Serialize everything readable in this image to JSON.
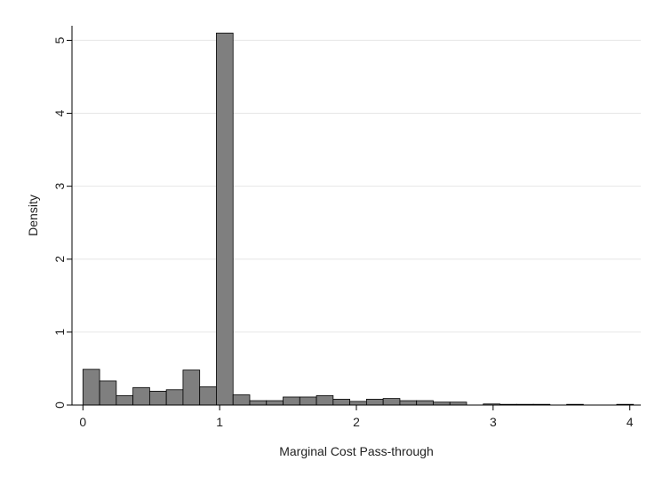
{
  "chart_data": {
    "type": "bar",
    "title": "",
    "xlabel": "Marginal Cost Pass-through",
    "ylabel": "Density",
    "xlim": [
      -0.08,
      4.08
    ],
    "ylim": [
      0,
      5.2
    ],
    "xticks": [
      0,
      1,
      2,
      3,
      4
    ],
    "yticks": [
      0,
      1,
      2,
      3,
      4,
      5
    ],
    "grid": true,
    "bin_width": 0.122,
    "bins": [
      {
        "x0": 0.0,
        "value": 0.49
      },
      {
        "x0": 0.122,
        "value": 0.33
      },
      {
        "x0": 0.244,
        "value": 0.13
      },
      {
        "x0": 0.366,
        "value": 0.24
      },
      {
        "x0": 0.488,
        "value": 0.19
      },
      {
        "x0": 0.61,
        "value": 0.21
      },
      {
        "x0": 0.732,
        "value": 0.48
      },
      {
        "x0": 0.854,
        "value": 0.25
      },
      {
        "x0": 0.976,
        "value": 5.1
      },
      {
        "x0": 1.098,
        "value": 0.14
      },
      {
        "x0": 1.22,
        "value": 0.06
      },
      {
        "x0": 1.342,
        "value": 0.06
      },
      {
        "x0": 1.464,
        "value": 0.11
      },
      {
        "x0": 1.586,
        "value": 0.11
      },
      {
        "x0": 1.708,
        "value": 0.13
      },
      {
        "x0": 1.83,
        "value": 0.08
      },
      {
        "x0": 1.952,
        "value": 0.05
      },
      {
        "x0": 2.074,
        "value": 0.08
      },
      {
        "x0": 2.196,
        "value": 0.09
      },
      {
        "x0": 2.318,
        "value": 0.06
      },
      {
        "x0": 2.44,
        "value": 0.06
      },
      {
        "x0": 2.562,
        "value": 0.04
      },
      {
        "x0": 2.684,
        "value": 0.04
      },
      {
        "x0": 2.928,
        "value": 0.015
      },
      {
        "x0": 3.05,
        "value": 0.008
      },
      {
        "x0": 3.172,
        "value": 0.008
      },
      {
        "x0": 3.294,
        "value": 0.008
      },
      {
        "x0": 3.538,
        "value": 0.008
      },
      {
        "x0": 3.904,
        "value": 0.008
      }
    ],
    "colors": {
      "bar_fill": "#7f7f7f",
      "bar_stroke": "#000000",
      "grid": "#e6e6e6",
      "axis": "#000000",
      "text": "#222222"
    }
  }
}
